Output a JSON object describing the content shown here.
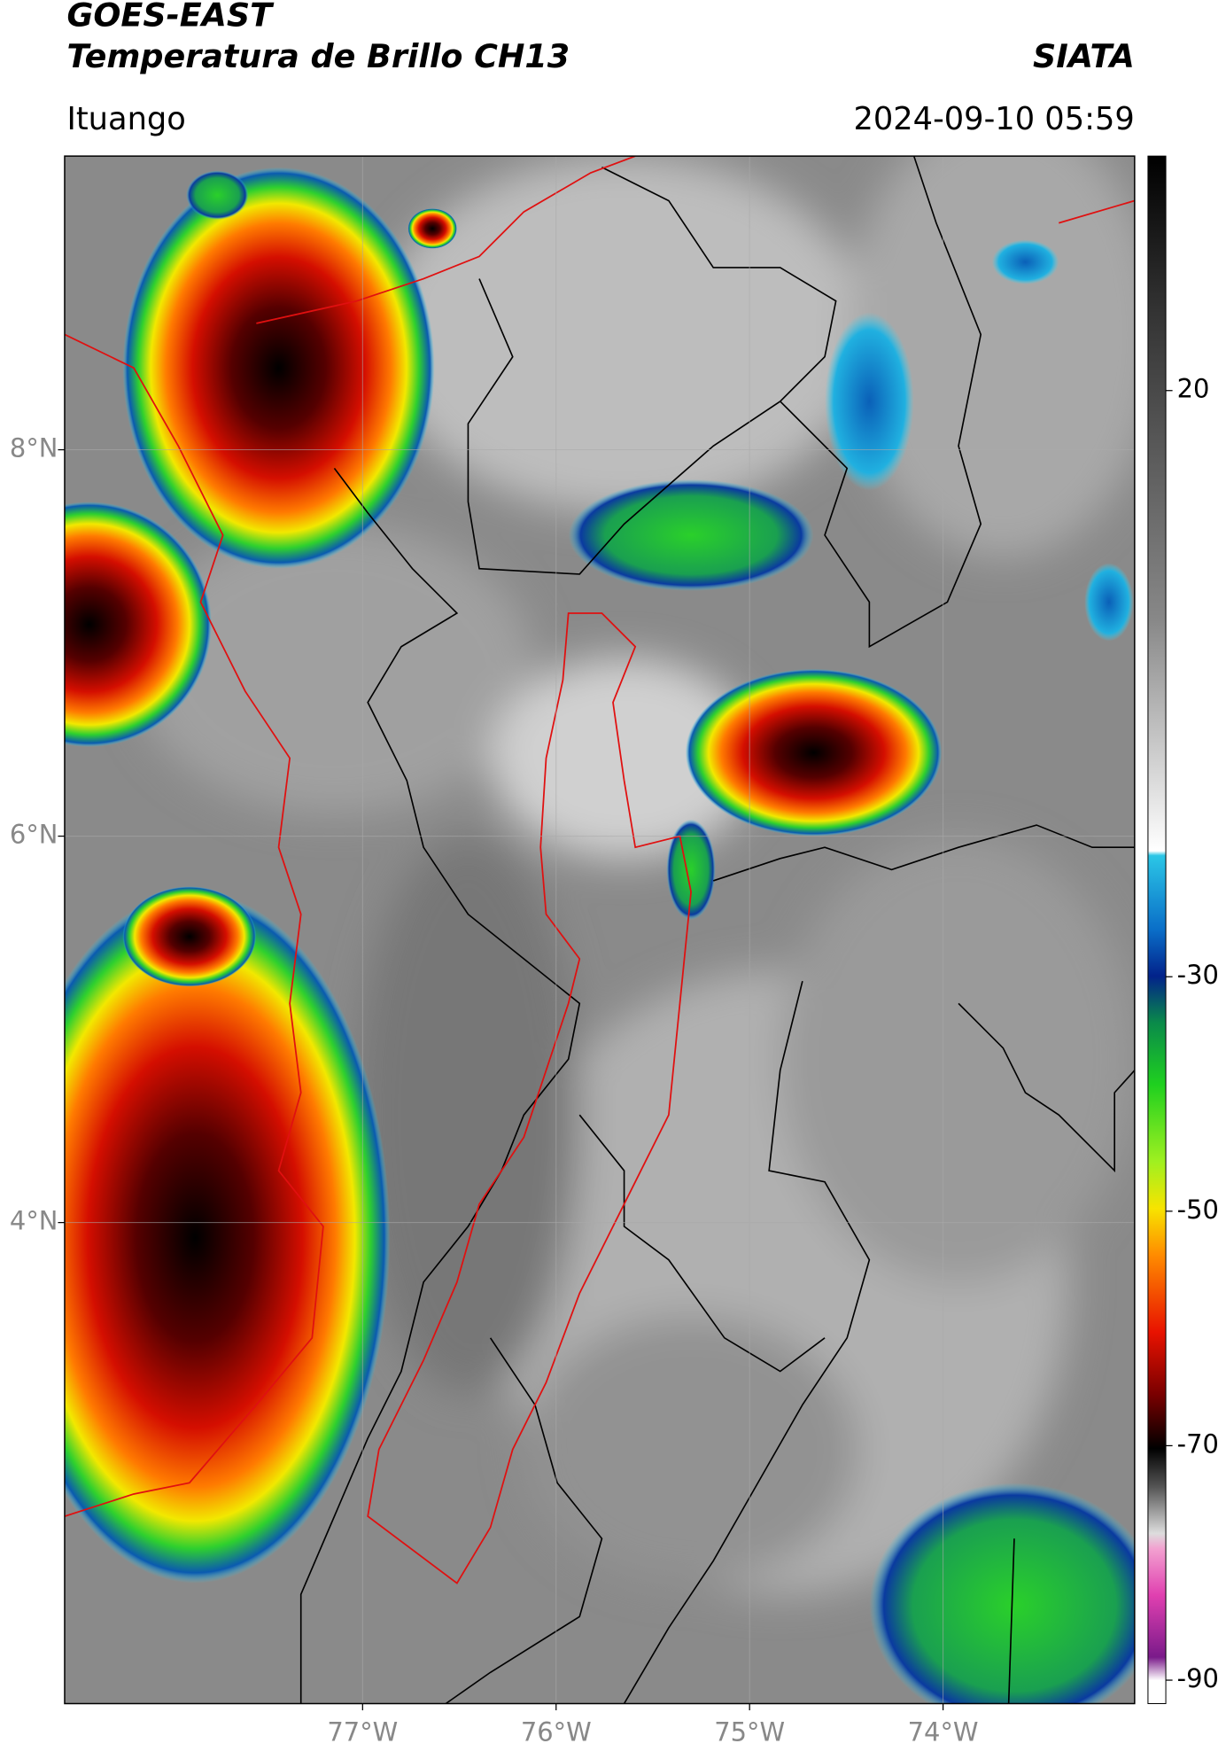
{
  "header": {
    "title": "GOES-EAST",
    "subtitle": "Temperatura de Brillo CH13",
    "source": "SIATA",
    "location": "Ituango",
    "datetime": "2024-09-10 05:59"
  },
  "map": {
    "lonlim": [
      -78.54,
      -73.01
    ],
    "latlim": [
      1.51,
      9.52
    ],
    "lonticks": [
      {
        "value": -77,
        "label": "77°W"
      },
      {
        "value": -76,
        "label": "76°W"
      },
      {
        "value": -75,
        "label": "75°W"
      },
      {
        "value": -74,
        "label": "74°W"
      }
    ],
    "latticks": [
      {
        "value": 8,
        "label": "8°N"
      },
      {
        "value": 6,
        "label": "6°N"
      },
      {
        "value": 4,
        "label": "4°N"
      }
    ],
    "grid": true
  },
  "colorbar": {
    "lim": [
      -92,
      40
    ],
    "ticks": [
      20,
      -30,
      -50,
      -70,
      -90
    ]
  }
}
